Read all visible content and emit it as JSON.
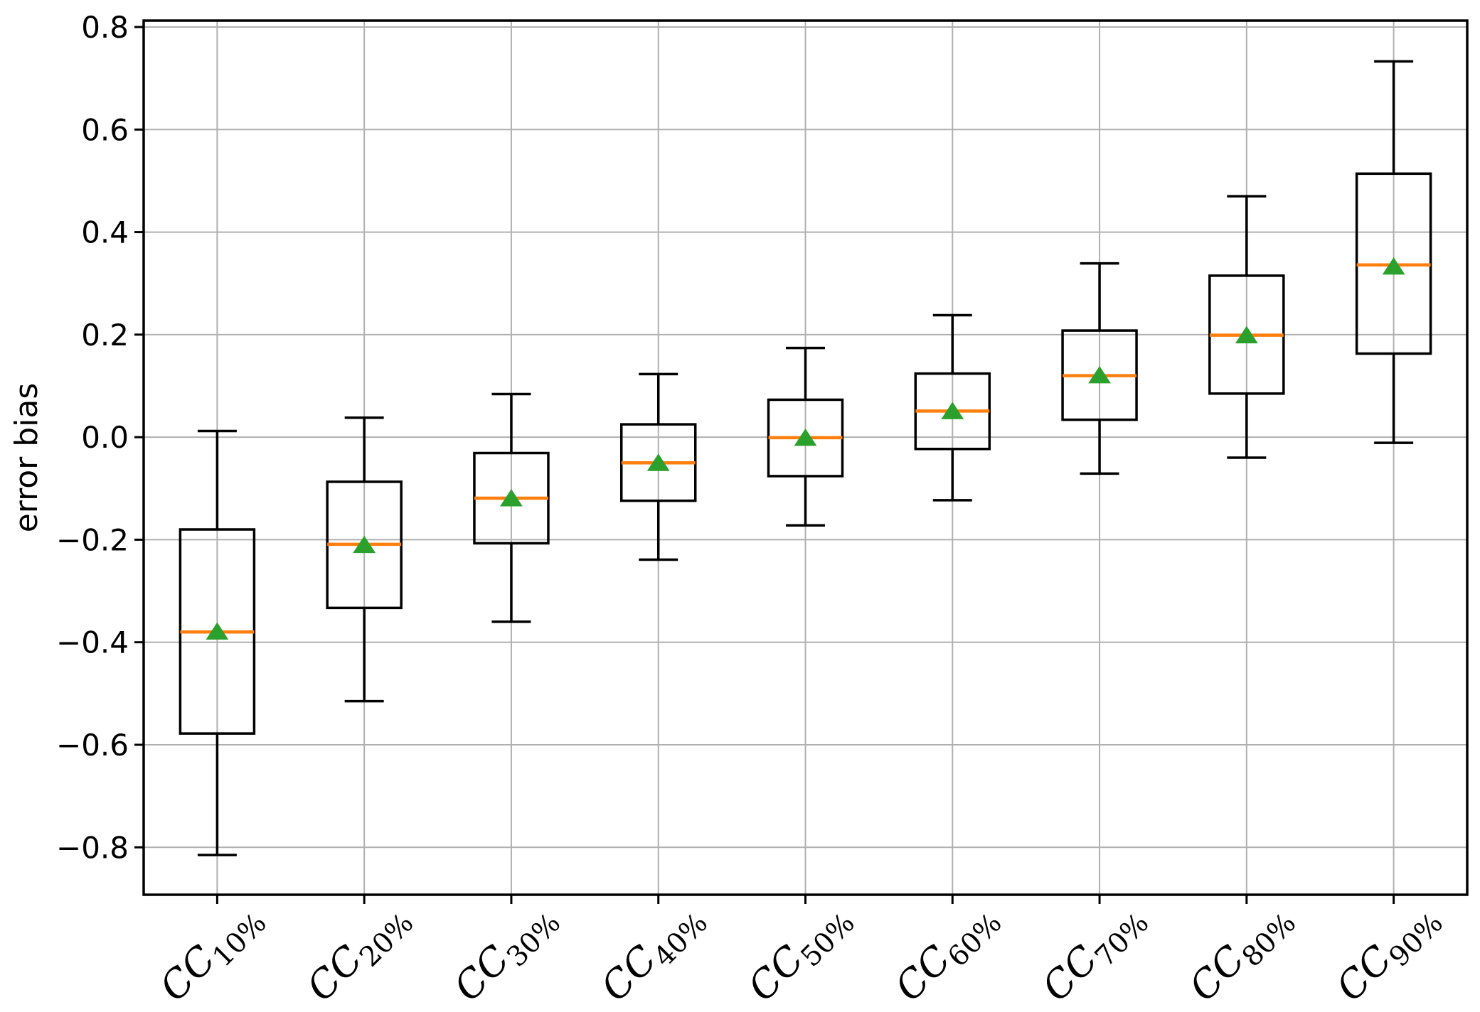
{
  "chart_data": {
    "type": "boxplot",
    "title": "",
    "xlabel": "",
    "ylabel": "error bias",
    "grid": true,
    "legend": "none",
    "xlim": [
      0.5,
      9.5
    ],
    "ylim": [
      -0.8925,
      0.8125
    ],
    "y_ticks": [
      0.8,
      0.6,
      0.4,
      0.2,
      0.0,
      -0.2,
      -0.4,
      -0.6,
      -0.8
    ],
    "categories": [
      {
        "base": "CC",
        "sub": "10%"
      },
      {
        "base": "CC",
        "sub": "20%"
      },
      {
        "base": "CC",
        "sub": "30%"
      },
      {
        "base": "CC",
        "sub": "40%"
      },
      {
        "base": "CC",
        "sub": "50%"
      },
      {
        "base": "CC",
        "sub": "60%"
      },
      {
        "base": "CC",
        "sub": "70%"
      },
      {
        "base": "CC",
        "sub": "80%"
      },
      {
        "base": "CC",
        "sub": "90%"
      }
    ],
    "boxes": [
      {
        "label": "CC10%",
        "whislo": -0.815,
        "q1": -0.578,
        "med": -0.38,
        "q3": -0.18,
        "whishi": 0.012,
        "mean": -0.379
      },
      {
        "label": "CC20%",
        "whislo": -0.515,
        "q1": -0.333,
        "med": -0.209,
        "q3": -0.087,
        "whishi": 0.038,
        "mean": -0.21
      },
      {
        "label": "CC30%",
        "whislo": -0.36,
        "q1": -0.207,
        "med": -0.119,
        "q3": -0.031,
        "whishi": 0.084,
        "mean": -0.119
      },
      {
        "label": "CC40%",
        "whislo": -0.239,
        "q1": -0.124,
        "med": -0.05,
        "q3": 0.025,
        "whishi": 0.123,
        "mean": -0.05
      },
      {
        "label": "CC50%",
        "whislo": -0.172,
        "q1": -0.076,
        "med": -0.001,
        "q3": 0.073,
        "whishi": 0.174,
        "mean": -0.001
      },
      {
        "label": "CC60%",
        "whislo": -0.123,
        "q1": -0.023,
        "med": 0.051,
        "q3": 0.124,
        "whishi": 0.238,
        "mean": 0.051
      },
      {
        "label": "CC70%",
        "whislo": -0.071,
        "q1": 0.034,
        "med": 0.12,
        "q3": 0.208,
        "whishi": 0.339,
        "mean": 0.121
      },
      {
        "label": "CC80%",
        "whislo": -0.04,
        "q1": 0.085,
        "med": 0.199,
        "q3": 0.315,
        "whishi": 0.47,
        "mean": 0.199
      },
      {
        "label": "CC90%",
        "whislo": -0.011,
        "q1": 0.163,
        "med": 0.336,
        "q3": 0.514,
        "whishi": 0.733,
        "mean": 0.333
      }
    ],
    "colors": {
      "median": "#ff7f0e",
      "mean_marker": "#2ca02c",
      "box_line": "#000000",
      "grid": "#b0b0b0",
      "spine": "#000000",
      "background": "#ffffff"
    }
  }
}
